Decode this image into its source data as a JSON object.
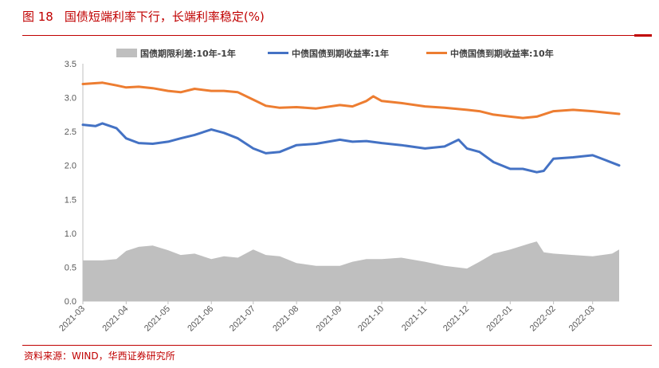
{
  "figure": {
    "number": "图 18",
    "title": "国债短端利率下行，长端利率稳定(%)",
    "source": "资料来源：WIND，华西证券研究所"
  },
  "chart_data": {
    "type": "line",
    "ylim": [
      0,
      3.5
    ],
    "yticks": [
      "0.0",
      "0.5",
      "1.0",
      "1.5",
      "2.0",
      "2.5",
      "3.0",
      "3.5"
    ],
    "xticks": [
      "2021-03",
      "2021-04",
      "2021-05",
      "2021-06",
      "2021-07",
      "2021-08",
      "2021-09",
      "2021-10",
      "2021-11",
      "2021-12",
      "2022-01",
      "2022-02",
      "2022-03"
    ],
    "legend_position": "top",
    "series": [
      {
        "name": "国债期限利差:10年-1年",
        "kind": "area",
        "color": "#bfbfbf",
        "points": [
          [
            "2021-03-01",
            0.6
          ],
          [
            "2021-03-15",
            0.6
          ],
          [
            "2021-03-25",
            0.62
          ],
          [
            "2021-04-01",
            0.74
          ],
          [
            "2021-04-10",
            0.8
          ],
          [
            "2021-04-20",
            0.82
          ],
          [
            "2021-05-01",
            0.75
          ],
          [
            "2021-05-10",
            0.68
          ],
          [
            "2021-05-20",
            0.7
          ],
          [
            "2021-06-01",
            0.62
          ],
          [
            "2021-06-10",
            0.66
          ],
          [
            "2021-06-20",
            0.64
          ],
          [
            "2021-07-01",
            0.76
          ],
          [
            "2021-07-10",
            0.68
          ],
          [
            "2021-07-20",
            0.66
          ],
          [
            "2021-08-01",
            0.56
          ],
          [
            "2021-08-15",
            0.52
          ],
          [
            "2021-09-01",
            0.52
          ],
          [
            "2021-09-10",
            0.58
          ],
          [
            "2021-09-20",
            0.62
          ],
          [
            "2021-10-01",
            0.62
          ],
          [
            "2021-10-15",
            0.64
          ],
          [
            "2021-11-01",
            0.58
          ],
          [
            "2021-11-15",
            0.52
          ],
          [
            "2021-12-01",
            0.48
          ],
          [
            "2021-12-10",
            0.58
          ],
          [
            "2021-12-20",
            0.7
          ],
          [
            "2022-01-01",
            0.76
          ],
          [
            "2022-01-15",
            0.85
          ],
          [
            "2022-01-20",
            0.88
          ],
          [
            "2022-01-25",
            0.72
          ],
          [
            "2022-02-01",
            0.7
          ],
          [
            "2022-02-15",
            0.68
          ],
          [
            "2022-03-01",
            0.66
          ],
          [
            "2022-03-15",
            0.7
          ],
          [
            "2022-03-20",
            0.76
          ]
        ]
      },
      {
        "name": "中债国债到期收益率:1年",
        "kind": "line",
        "color": "#4472c4",
        "points": [
          [
            "2021-03-01",
            2.6
          ],
          [
            "2021-03-10",
            2.58
          ],
          [
            "2021-03-15",
            2.62
          ],
          [
            "2021-03-25",
            2.55
          ],
          [
            "2021-04-01",
            2.4
          ],
          [
            "2021-04-10",
            2.33
          ],
          [
            "2021-04-20",
            2.32
          ],
          [
            "2021-05-01",
            2.35
          ],
          [
            "2021-05-10",
            2.4
          ],
          [
            "2021-05-20",
            2.45
          ],
          [
            "2021-06-01",
            2.53
          ],
          [
            "2021-06-10",
            2.48
          ],
          [
            "2021-06-20",
            2.4
          ],
          [
            "2021-07-01",
            2.25
          ],
          [
            "2021-07-10",
            2.18
          ],
          [
            "2021-07-20",
            2.2
          ],
          [
            "2021-08-01",
            2.3
          ],
          [
            "2021-08-15",
            2.32
          ],
          [
            "2021-09-01",
            2.38
          ],
          [
            "2021-09-10",
            2.35
          ],
          [
            "2021-09-20",
            2.36
          ],
          [
            "2021-10-01",
            2.33
          ],
          [
            "2021-10-15",
            2.3
          ],
          [
            "2021-11-01",
            2.25
          ],
          [
            "2021-11-15",
            2.28
          ],
          [
            "2021-11-25",
            2.38
          ],
          [
            "2021-12-01",
            2.25
          ],
          [
            "2021-12-10",
            2.2
          ],
          [
            "2021-12-20",
            2.05
          ],
          [
            "2022-01-01",
            1.95
          ],
          [
            "2022-01-10",
            1.95
          ],
          [
            "2022-01-20",
            1.9
          ],
          [
            "2022-01-25",
            1.92
          ],
          [
            "2022-02-01",
            2.1
          ],
          [
            "2022-02-15",
            2.12
          ],
          [
            "2022-03-01",
            2.15
          ],
          [
            "2022-03-10",
            2.08
          ],
          [
            "2022-03-20",
            2.0
          ]
        ]
      },
      {
        "name": "中债国债到期收益率:10年",
        "kind": "line",
        "color": "#ed7d31",
        "points": [
          [
            "2021-03-01",
            3.2
          ],
          [
            "2021-03-15",
            3.22
          ],
          [
            "2021-03-25",
            3.18
          ],
          [
            "2021-04-01",
            3.15
          ],
          [
            "2021-04-10",
            3.16
          ],
          [
            "2021-04-20",
            3.14
          ],
          [
            "2021-05-01",
            3.1
          ],
          [
            "2021-05-10",
            3.08
          ],
          [
            "2021-05-20",
            3.13
          ],
          [
            "2021-06-01",
            3.1
          ],
          [
            "2021-06-10",
            3.1
          ],
          [
            "2021-06-20",
            3.08
          ],
          [
            "2021-07-01",
            2.97
          ],
          [
            "2021-07-10",
            2.88
          ],
          [
            "2021-07-20",
            2.85
          ],
          [
            "2021-08-01",
            2.86
          ],
          [
            "2021-08-15",
            2.84
          ],
          [
            "2021-09-01",
            2.89
          ],
          [
            "2021-09-10",
            2.87
          ],
          [
            "2021-09-20",
            2.95
          ],
          [
            "2021-09-25",
            3.02
          ],
          [
            "2021-10-01",
            2.95
          ],
          [
            "2021-10-15",
            2.92
          ],
          [
            "2021-11-01",
            2.87
          ],
          [
            "2021-11-15",
            2.85
          ],
          [
            "2021-12-01",
            2.82
          ],
          [
            "2021-12-10",
            2.8
          ],
          [
            "2021-12-20",
            2.75
          ],
          [
            "2022-01-01",
            2.72
          ],
          [
            "2022-01-10",
            2.7
          ],
          [
            "2022-01-20",
            2.72
          ],
          [
            "2022-02-01",
            2.8
          ],
          [
            "2022-02-15",
            2.82
          ],
          [
            "2022-03-01",
            2.8
          ],
          [
            "2022-03-10",
            2.78
          ],
          [
            "2022-03-20",
            2.76
          ]
        ]
      }
    ]
  }
}
